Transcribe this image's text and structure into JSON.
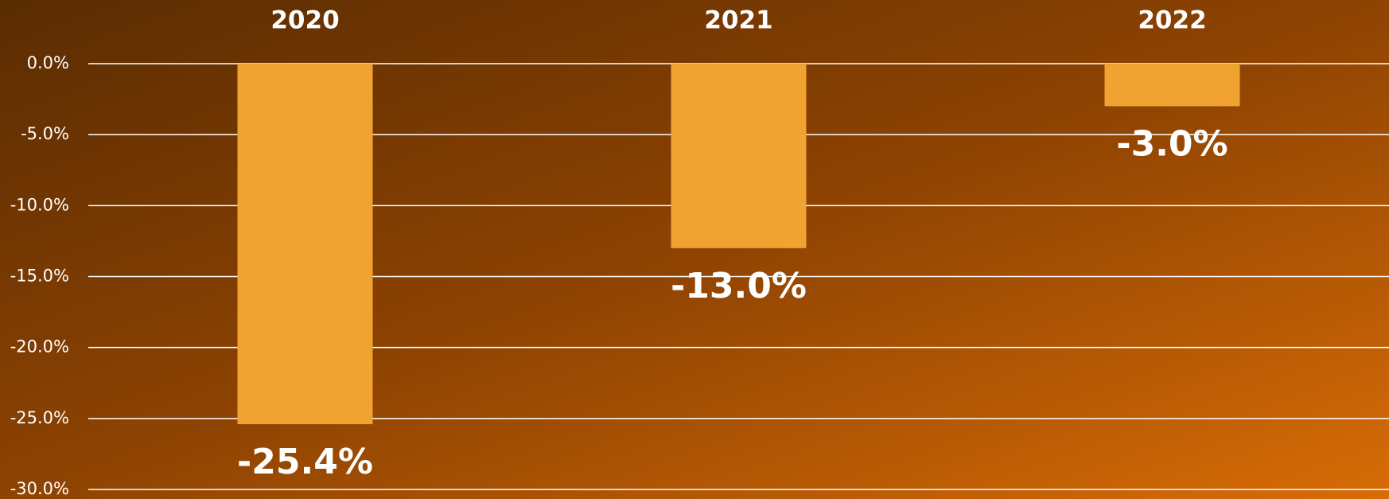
{
  "chart_data": {
    "type": "bar",
    "categories": [
      "2020",
      "2021",
      "2022"
    ],
    "values": [
      -25.4,
      -13.0,
      -3.0
    ],
    "value_labels": [
      "-25.4%",
      "-13.0%",
      "-3.0%"
    ],
    "color": "#f0a330",
    "ylim": [
      -30,
      0
    ],
    "yticks": [
      {
        "value": 0,
        "label": "0.0%"
      },
      {
        "value": -5,
        "label": "-5.0%"
      },
      {
        "value": -10,
        "label": "-10.0%"
      },
      {
        "value": -15,
        "label": "-15.0%"
      },
      {
        "value": -20,
        "label": "-20.0%"
      },
      {
        "value": -25,
        "label": "-25.0%"
      },
      {
        "value": -30,
        "label": "-30.0%"
      }
    ],
    "grid": true
  }
}
